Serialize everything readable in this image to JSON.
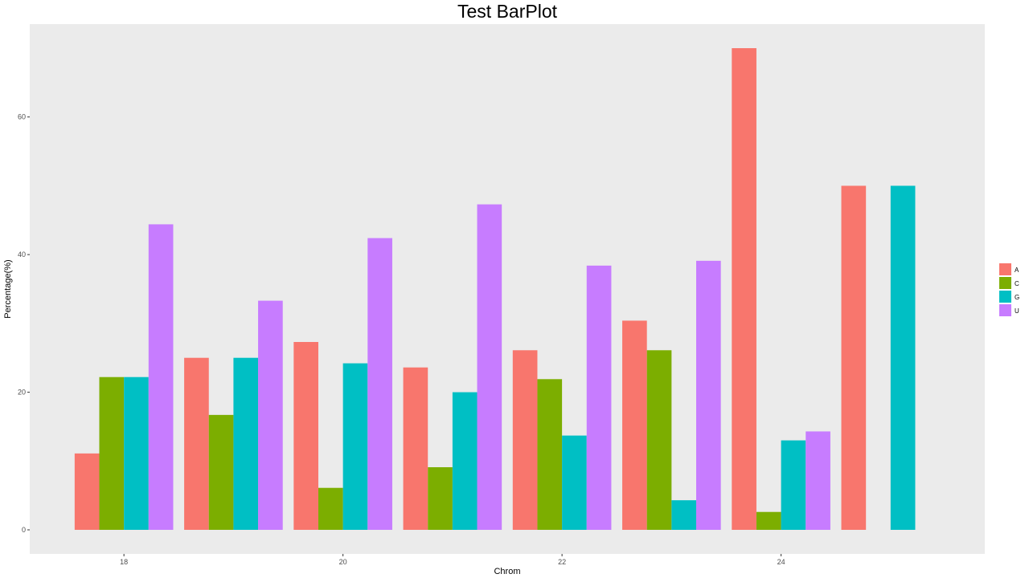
{
  "chart_data": {
    "type": "bar",
    "title": "Test BarPlot",
    "xlabel": "Chrom",
    "ylabel": "Percentage(%)",
    "ylim": [
      -3.5,
      73.5
    ],
    "yticks": [
      0,
      20,
      40,
      60
    ],
    "xticks": [
      18,
      20,
      22,
      24
    ],
    "categories": [
      18,
      19,
      20,
      21,
      22,
      23,
      24,
      25
    ],
    "series": [
      {
        "name": "A",
        "color": "#F8766D",
        "values": [
          11.1,
          25.0,
          27.3,
          23.6,
          26.1,
          30.4,
          70.0,
          50.0
        ]
      },
      {
        "name": "C",
        "color": "#7CAE00",
        "values": [
          22.2,
          16.7,
          6.1,
          9.1,
          21.9,
          26.1,
          2.6,
          null
        ]
      },
      {
        "name": "G",
        "color": "#00BFC4",
        "values": [
          22.2,
          25.0,
          24.2,
          20.0,
          13.7,
          4.3,
          13.0,
          50.0
        ]
      },
      {
        "name": "U",
        "color": "#C77CFF",
        "values": [
          44.4,
          33.3,
          42.4,
          47.3,
          38.4,
          39.1,
          14.3,
          null
        ]
      }
    ],
    "grid": false,
    "legend_position": "right",
    "panel_color": "#EBEBEB"
  }
}
